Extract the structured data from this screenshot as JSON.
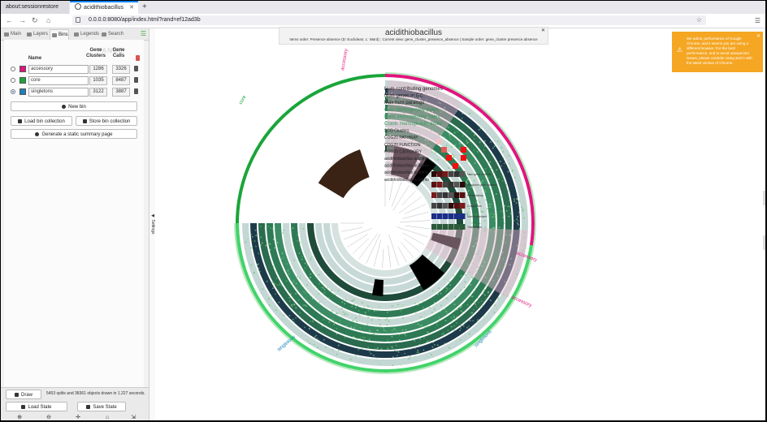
{
  "browser": {
    "tabs": [
      {
        "label": "about:sessionrestore",
        "active": false
      },
      {
        "label": "acidithiobacillus",
        "active": true
      }
    ],
    "url": "0.0.0.0:8080/app/index.html?rand=ef12ad3b"
  },
  "sidebar": {
    "tabs": [
      "Main",
      "Layers",
      "Bins",
      "Legends",
      "Search"
    ],
    "active_tab": "Bins",
    "columns": {
      "name": "Name",
      "gene_clusters": "Gene Clusters",
      "gene_calls": "Gene Calls"
    },
    "bins": [
      {
        "name": "accessory",
        "color": "#e0157e",
        "gene_clusters": "1286",
        "gene_calls": "3326",
        "selected": false
      },
      {
        "name": "core",
        "color": "#1aa53a",
        "gene_clusters": "1035",
        "gene_calls": "8487",
        "selected": false
      },
      {
        "name": "singletons",
        "color": "#1d7fb8",
        "gene_clusters": "3122",
        "gene_calls": "3887",
        "selected": true
      }
    ],
    "buttons": {
      "new_bin": "New bin",
      "load_collection": "Load bin collection",
      "store_collection": "Store bin collection",
      "summary": "Generate a static summary page"
    },
    "footer": {
      "draw": "Draw",
      "status": "5453 splits and 38361 objects drawn in 1.227 seconds.",
      "load_state": "Load State",
      "save_state": "Save State"
    },
    "handle": "Settings"
  },
  "main": {
    "title": "acidithiobacillus",
    "subtitle": "Items order: Presence absence (D: Euclidean; L: Ward) ; Current view: gene_cluster_presence_absence | Sample order: gene_cluster presence absence",
    "warning": "We admit, performance of Google Chrome, and it seems you are using a different browser. For the best performance, and to avoid unexpected issues, please consider using anvi'o with the latest version of Chrome.",
    "ring_labels": [
      "Num contributing genomes",
      "Num genes in GC",
      "Max num paralogs",
      "Geo. Homogeneity Index",
      "Func. Homogeneity Index",
      "Comb. Homogeneity Index",
      "SCG Clusters",
      "COG20 PATHWAY",
      "COG20 FUNCTION",
      "COG20 CATEGORY",
      "acidithiobacillus acidithio",
      "acidithiobacillus acidithio",
      "acidithiobacillus acidithio",
      "acidithiobacillus acidithio"
    ],
    "bin_arc_labels": [
      "core",
      "accessory",
      "accessory",
      "accessory",
      "singletons",
      "singletons"
    ],
    "layer_labels": [
      "Num gene clusters",
      "Singleton gene clusters",
      "Redundancy",
      "Completion",
      "Num redundant",
      "Total length"
    ]
  }
}
